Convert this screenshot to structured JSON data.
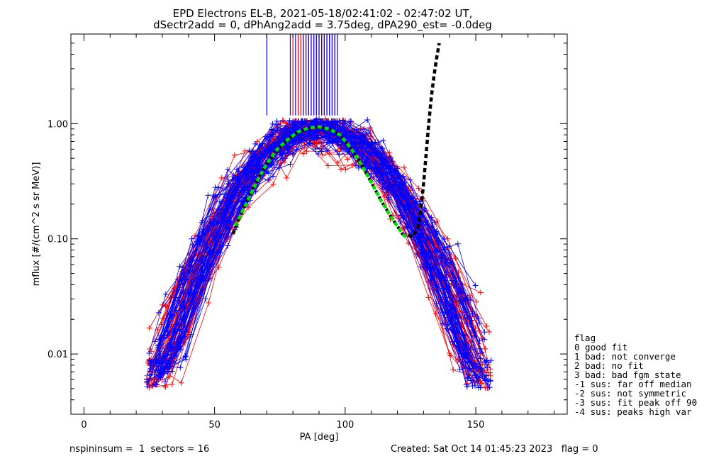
{
  "chart_data": {
    "type": "scatter",
    "title_line1": "EPD Electrons EL-B, 2021-05-18/02:41:02 - 02:47:02 UT,",
    "title_line2": "dSectr2add = 0, dPhAng2add = 3.75deg, dPA290_est=  -0.0deg",
    "xlabel": "PA [deg]",
    "ylabel": "mflux [#/(cm^2 s sr MeV)]",
    "xlim": [
      -5,
      185
    ],
    "ylim": [
      0.003,
      6.0
    ],
    "yscale": "log",
    "x_ticks": [
      0,
      50,
      100,
      150
    ],
    "x_tick_labels": [
      "0",
      "50",
      "100",
      "150"
    ],
    "y_ticks": [
      0.01,
      0.1,
      1.0
    ],
    "y_tick_labels": [
      "0.01",
      "0.10",
      "1.00"
    ],
    "series": [
      {
        "color": "#ff0000"
      },
      {
        "color": "#0000ff"
      }
    ],
    "green_fit": {
      "color": "#00dd00",
      "x": [
        58,
        62,
        66,
        70,
        74,
        78,
        82,
        86,
        90,
        94,
        98,
        102,
        106,
        110,
        114,
        118,
        122,
        124
      ],
      "y": [
        0.13,
        0.2,
        0.31,
        0.45,
        0.6,
        0.73,
        0.85,
        0.92,
        0.94,
        0.9,
        0.8,
        0.62,
        0.45,
        0.31,
        0.21,
        0.15,
        0.11,
        0.1
      ]
    },
    "black_fit": {
      "color": "#000000",
      "x": [
        57,
        60,
        63,
        66,
        70,
        74,
        78,
        82,
        86,
        90,
        94,
        98,
        102,
        106,
        110,
        114,
        118,
        122,
        126,
        128,
        129,
        130,
        131,
        132,
        133,
        134,
        135,
        136
      ],
      "y": [
        0.11,
        0.16,
        0.23,
        0.31,
        0.45,
        0.6,
        0.73,
        0.85,
        0.92,
        0.94,
        0.9,
        0.8,
        0.62,
        0.45,
        0.31,
        0.21,
        0.15,
        0.11,
        0.105,
        0.13,
        0.18,
        0.3,
        0.55,
        1.0,
        1.7,
        2.6,
        3.7,
        5.0
      ]
    },
    "vertical_markers": {
      "red": [
        80,
        82,
        83,
        84,
        85,
        86,
        87,
        88,
        89,
        90,
        91,
        92,
        93,
        94,
        95,
        96
      ],
      "blue": [
        70,
        79,
        81,
        84,
        85,
        86,
        87,
        88,
        89,
        90,
        91,
        92,
        93,
        94,
        95,
        96,
        97
      ],
      "y_from": 1.18,
      "y_to": 6.0
    },
    "legend": {
      "position": "right-bottom",
      "title": "flag",
      "entries": [
        " 0 good fit",
        " 1 bad: not converge",
        " 2 bad: no fit",
        " 3 bad: bad fgm state",
        "-1 sus: far off median",
        "-2 sus: not symmetric",
        "-3 sus: fit peak off 90",
        "-4 sus: peaks high var"
      ]
    }
  },
  "footer": {
    "left": "nspininsum =  1  sectors = 16",
    "right": "Created: Sat Oct 14 01:45:23 2023   flag = 0"
  }
}
